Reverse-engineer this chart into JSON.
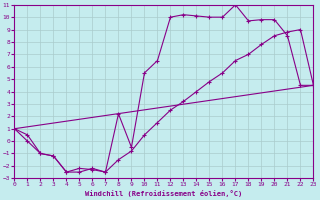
{
  "xlabel": "Windchill (Refroidissement éolien,°C)",
  "xlim": [
    0,
    23
  ],
  "ylim": [
    -3,
    11
  ],
  "xticks": [
    0,
    1,
    2,
    3,
    4,
    5,
    6,
    7,
    8,
    9,
    10,
    11,
    12,
    13,
    14,
    15,
    16,
    17,
    18,
    19,
    20,
    21,
    22,
    23
  ],
  "yticks": [
    -3,
    -2,
    -1,
    0,
    1,
    2,
    3,
    4,
    5,
    6,
    7,
    8,
    9,
    10,
    11
  ],
  "background_color": "#c5ecee",
  "line_color": "#880088",
  "grid_color": "#aacccc",
  "line1_x": [
    0,
    1,
    2,
    3,
    4,
    5,
    6,
    7,
    8,
    9,
    10,
    11,
    12,
    13,
    14,
    15,
    16,
    17,
    18,
    19,
    20,
    21,
    22,
    23
  ],
  "line1_y": [
    1,
    0,
    -1,
    -1.2,
    -2.5,
    -2.5,
    -2.2,
    -2.5,
    2.2,
    -0.5,
    5.5,
    6.5,
    10.0,
    10.2,
    10.1,
    10.0,
    10.0,
    11.0,
    9.7,
    9.8,
    9.8,
    8.5,
    4.5,
    4.5
  ],
  "line2_x": [
    0,
    1,
    2,
    3,
    4,
    5,
    6,
    7,
    8,
    9,
    10,
    11,
    12,
    13,
    14,
    15,
    16,
    17,
    18,
    19,
    20,
    21,
    22,
    23
  ],
  "line2_y": [
    1,
    0.5,
    -1.0,
    -1.2,
    -2.5,
    -2.2,
    -2.3,
    -2.5,
    -1.5,
    -0.8,
    0.5,
    1.5,
    2.5,
    3.2,
    4.0,
    4.8,
    5.5,
    6.5,
    7.0,
    7.8,
    8.5,
    8.8,
    9.0,
    4.5
  ],
  "line3_x": [
    0,
    23
  ],
  "line3_y": [
    1,
    4.5
  ]
}
